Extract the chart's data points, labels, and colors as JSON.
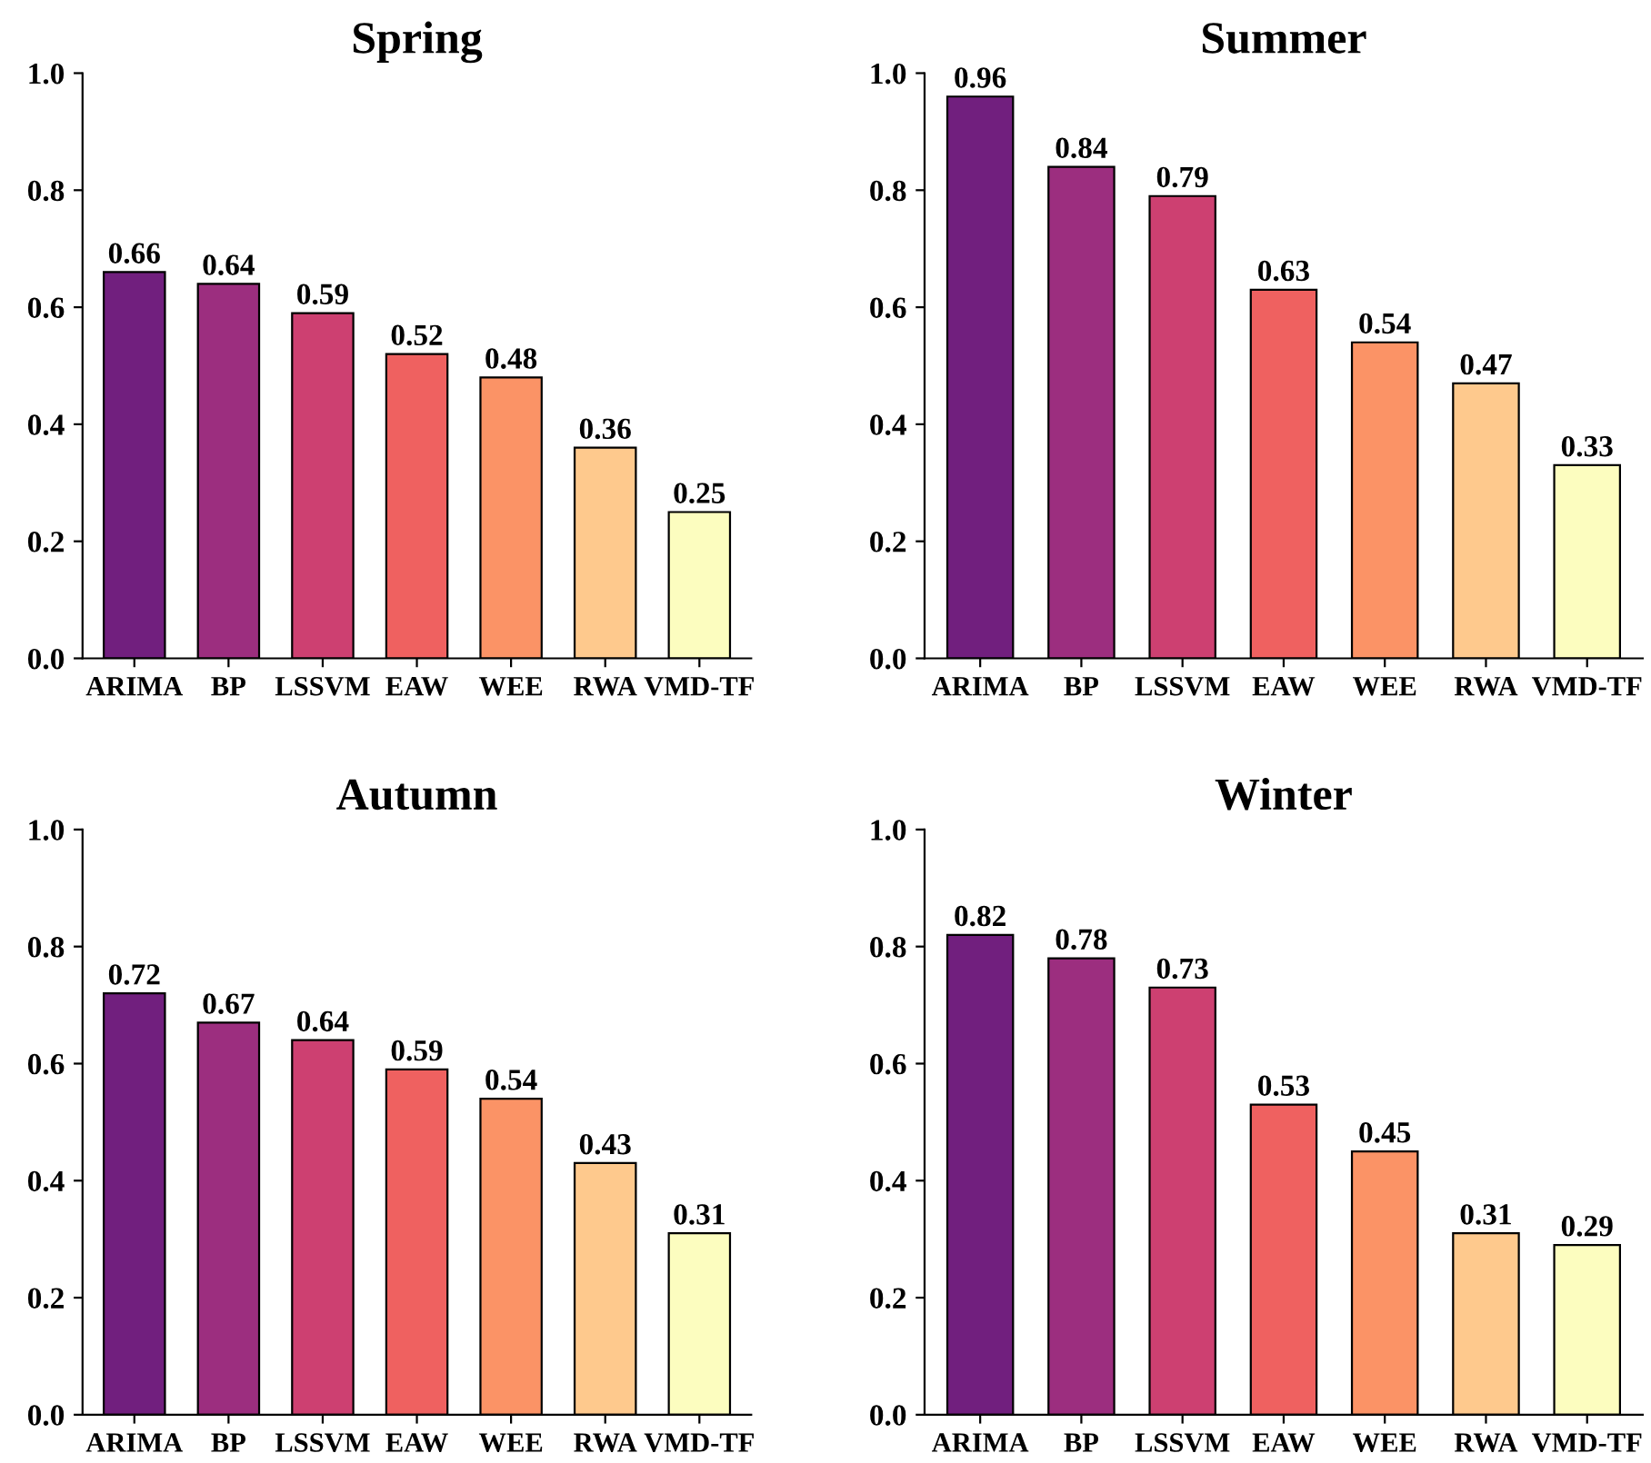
{
  "chart_data": [
    {
      "type": "bar",
      "title": "Spring",
      "categories": [
        "ARIMA",
        "BP",
        "LSSVM",
        "EAW",
        "WEE",
        "RWA",
        "VMD-TF"
      ],
      "values": [
        0.66,
        0.64,
        0.59,
        0.52,
        0.48,
        0.36,
        0.25
      ],
      "colors": [
        "#711f7e",
        "#9c2e7f",
        "#cd4071",
        "#ef6160",
        "#fb9366",
        "#fec98d",
        "#fcfdbf"
      ],
      "ylim": [
        0,
        1
      ],
      "yticks": [
        {
          "value": 0,
          "label": "0.0"
        },
        {
          "value": 0.2,
          "label": "0.2"
        },
        {
          "value": 0.4,
          "label": "0.4"
        },
        {
          "value": 0.6,
          "label": "0.6"
        },
        {
          "value": 0.8,
          "label": "0.8"
        },
        {
          "value": 1,
          "label": "1.0"
        }
      ],
      "data_labels": true,
      "grid": false
    },
    {
      "type": "bar",
      "title": "Summer",
      "categories": [
        "ARIMA",
        "BP",
        "LSSVM",
        "EAW",
        "WEE",
        "RWA",
        "VMD-TF"
      ],
      "values": [
        0.96,
        0.84,
        0.79,
        0.63,
        0.54,
        0.47,
        0.33
      ],
      "colors": [
        "#711f7e",
        "#9c2e7f",
        "#cd4071",
        "#ef6160",
        "#fb9366",
        "#fec98d",
        "#fcfdbf"
      ],
      "ylim": [
        0,
        1
      ],
      "yticks": [
        {
          "value": 0,
          "label": "0.0"
        },
        {
          "value": 0.2,
          "label": "0.2"
        },
        {
          "value": 0.4,
          "label": "0.4"
        },
        {
          "value": 0.6,
          "label": "0.6"
        },
        {
          "value": 0.8,
          "label": "0.8"
        },
        {
          "value": 1,
          "label": "1.0"
        }
      ],
      "data_labels": true,
      "grid": false
    },
    {
      "type": "bar",
      "title": "Autumn",
      "categories": [
        "ARIMA",
        "BP",
        "LSSVM",
        "EAW",
        "WEE",
        "RWA",
        "VMD-TF"
      ],
      "values": [
        0.72,
        0.67,
        0.64,
        0.59,
        0.54,
        0.43,
        0.31
      ],
      "colors": [
        "#711f7e",
        "#9c2e7f",
        "#cd4071",
        "#ef6160",
        "#fb9366",
        "#fec98d",
        "#fcfdbf"
      ],
      "ylim": [
        0,
        1
      ],
      "yticks": [
        {
          "value": 0,
          "label": "0.0"
        },
        {
          "value": 0.2,
          "label": "0.2"
        },
        {
          "value": 0.4,
          "label": "0.4"
        },
        {
          "value": 0.6,
          "label": "0.6"
        },
        {
          "value": 0.8,
          "label": "0.8"
        },
        {
          "value": 1,
          "label": "1.0"
        }
      ],
      "data_labels": true,
      "grid": false
    },
    {
      "type": "bar",
      "title": "Winter",
      "categories": [
        "ARIMA",
        "BP",
        "LSSVM",
        "EAW",
        "WEE",
        "RWA",
        "VMD-TF"
      ],
      "values": [
        0.82,
        0.78,
        0.73,
        0.53,
        0.45,
        0.31,
        0.29
      ],
      "colors": [
        "#711f7e",
        "#9c2e7f",
        "#cd4071",
        "#ef6160",
        "#fb9366",
        "#fec98d",
        "#fcfdbf"
      ],
      "ylim": [
        0,
        1
      ],
      "yticks": [
        {
          "value": 0,
          "label": "0.0"
        },
        {
          "value": 0.2,
          "label": "0.2"
        },
        {
          "value": 0.4,
          "label": "0.4"
        },
        {
          "value": 0.6,
          "label": "0.6"
        },
        {
          "value": 0.8,
          "label": "0.8"
        },
        {
          "value": 1,
          "label": "1.0"
        }
      ],
      "data_labels": true,
      "grid": false
    }
  ]
}
